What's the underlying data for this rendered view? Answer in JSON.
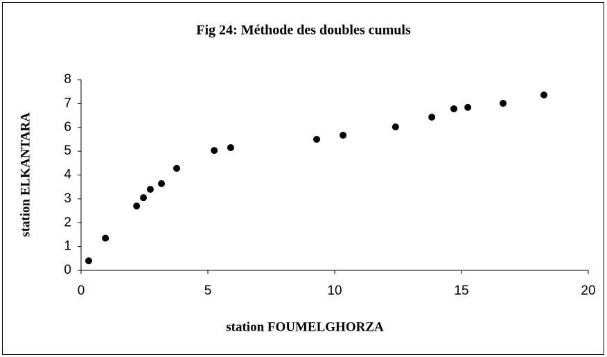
{
  "chart_data": {
    "type": "scatter",
    "title": "Fig 24: Méthode des doubles cumuls",
    "x_label": "station FOUMELGHORZA",
    "y_label": "station ELKANTARA",
    "x": [
      0.3,
      0.96,
      2.19,
      2.46,
      2.73,
      3.17,
      3.77,
      5.25,
      5.9,
      9.29,
      10.33,
      12.4,
      13.83,
      14.7,
      15.25,
      16.64,
      18.25
    ],
    "values": [
      0.4,
      1.35,
      2.7,
      3.05,
      3.4,
      3.64,
      4.28,
      5.03,
      5.15,
      5.5,
      5.67,
      6.02,
      6.43,
      6.78,
      6.84,
      7.01,
      7.36
    ],
    "color": "#000000",
    "xlim": [
      0,
      20
    ],
    "xticks": [
      0,
      5,
      10,
      15,
      20
    ],
    "ylim": [
      0,
      8
    ],
    "yticks": [
      0,
      1,
      2,
      3,
      4,
      5,
      6,
      7,
      8
    ]
  }
}
